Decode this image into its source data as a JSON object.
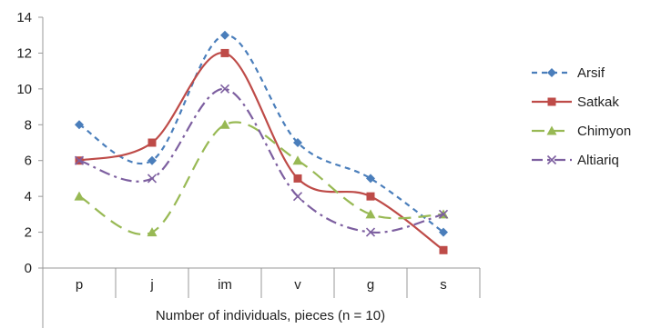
{
  "chart_data": {
    "type": "line",
    "title": "",
    "xlabel": "Number of individuals, pieces (n = 10)",
    "ylabel": "",
    "categories": [
      "p",
      "j",
      "im",
      "v",
      "g",
      "s"
    ],
    "ylim": [
      0,
      14
    ],
    "yticks": [
      0,
      2,
      4,
      6,
      8,
      10,
      12,
      14
    ],
    "grid": false,
    "legend_position": "right",
    "series": [
      {
        "name": "Arsif",
        "values": [
          8,
          6,
          13,
          7,
          5,
          2
        ],
        "color": "#4a7ebb",
        "marker": "diamond",
        "dash": "dashed"
      },
      {
        "name": "Satkak",
        "values": [
          6,
          7,
          12,
          5,
          4,
          1
        ],
        "color": "#be4b48",
        "marker": "square",
        "dash": "solid"
      },
      {
        "name": "Chimyon",
        "values": [
          4,
          2,
          8,
          6,
          3,
          3
        ],
        "color": "#98b954",
        "marker": "triangle",
        "dash": "longdash"
      },
      {
        "name": "Altiariq",
        "values": [
          6,
          5,
          10,
          4,
          2,
          3
        ],
        "color": "#7d5fa0",
        "marker": "x",
        "dash": "dashdot"
      }
    ]
  }
}
